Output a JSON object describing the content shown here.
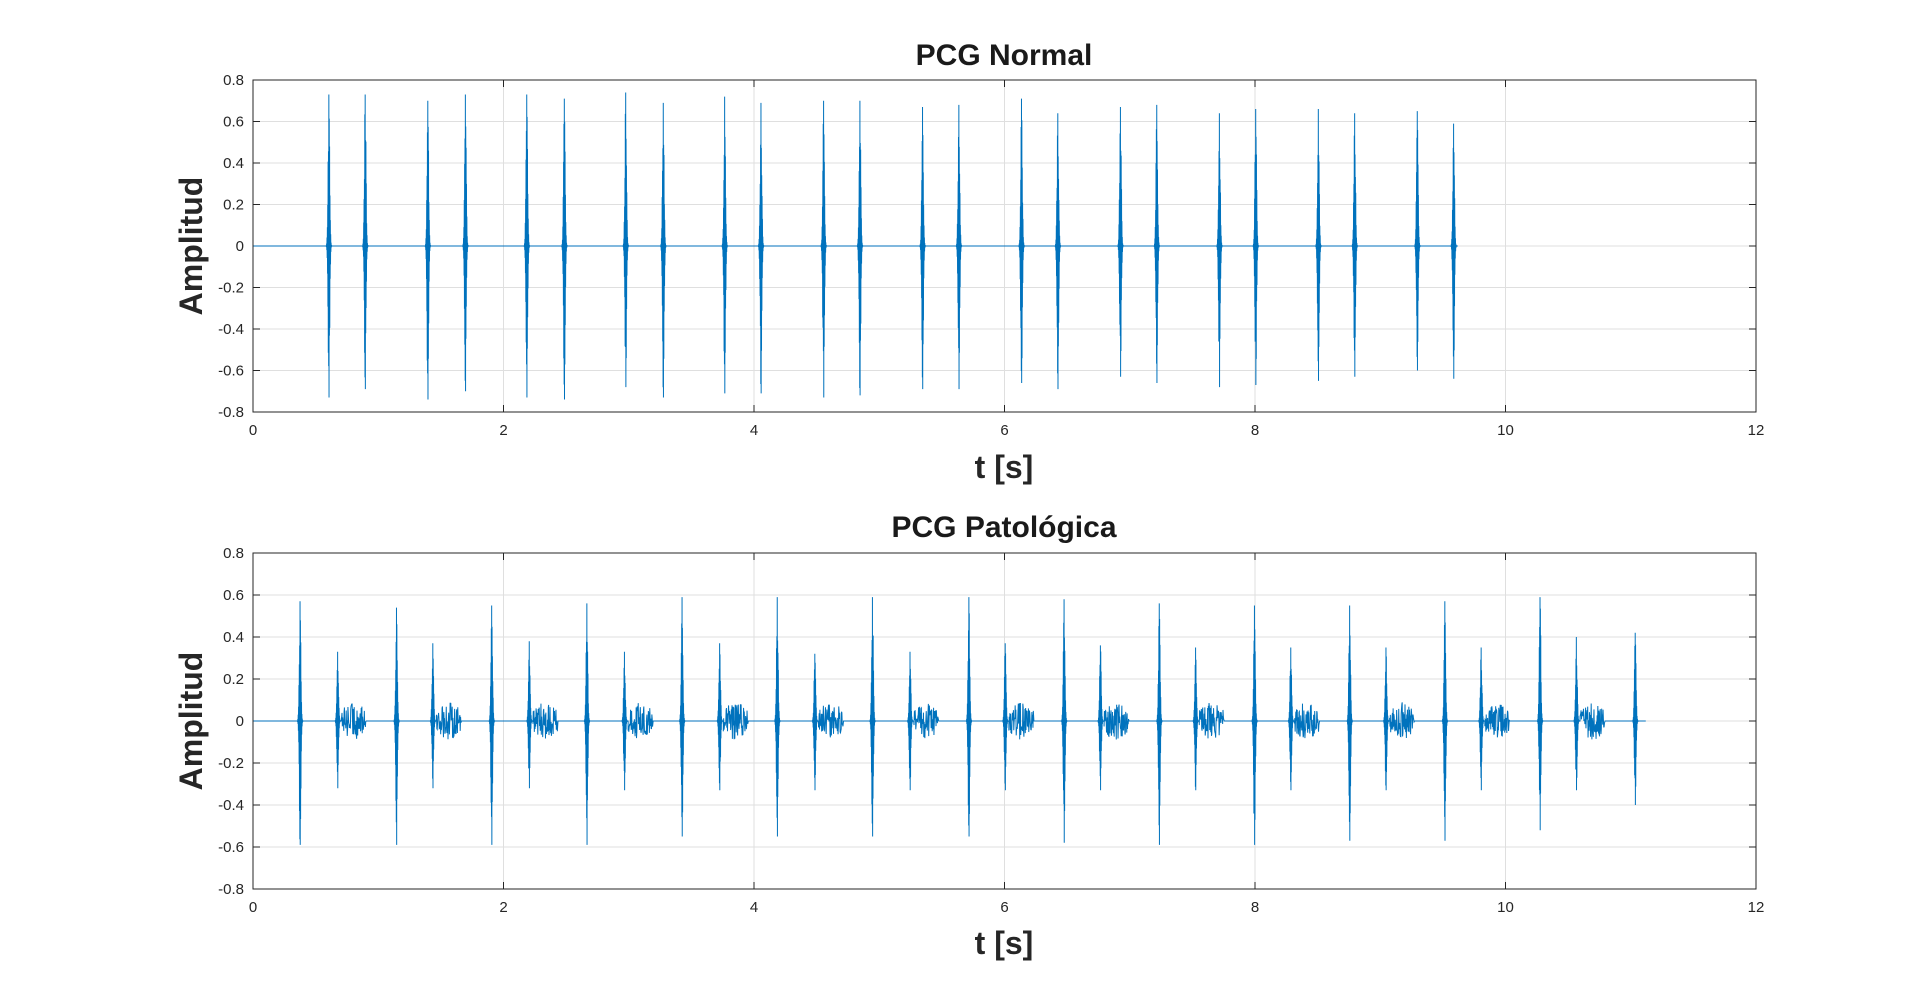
{
  "colors": {
    "signal": "#0072BD",
    "grid": "#dfdfdf",
    "axis": "#262626"
  },
  "chart_data": [
    {
      "type": "line",
      "title": "PCG Normal",
      "xlabel": "t [s]",
      "ylabel": "Amplitud",
      "xlim": [
        0,
        12
      ],
      "ylim": [
        -0.8,
        0.8
      ],
      "grid": true,
      "xticks": [
        "0",
        "2",
        "4",
        "6",
        "8",
        "10",
        "12"
      ],
      "yticks": [
        "0.8",
        "0.6",
        "0.4",
        "0.2",
        "0",
        "-0.2",
        "-0.4",
        "-0.6",
        "-0.8"
      ],
      "series": [
        {
          "signal_end": 9.62,
          "bursts": [
            {
              "t": 0.61,
              "pos": 0.73,
              "neg": -0.73,
              "dur": 0.05,
              "murmur": 0
            },
            {
              "t": 0.9,
              "pos": 0.73,
              "neg": -0.69,
              "dur": 0.05,
              "murmur": 0
            },
            {
              "t": 1.4,
              "pos": 0.7,
              "neg": -0.74,
              "dur": 0.05,
              "murmur": 0
            },
            {
              "t": 1.7,
              "pos": 0.73,
              "neg": -0.7,
              "dur": 0.05,
              "murmur": 0
            },
            {
              "t": 2.19,
              "pos": 0.73,
              "neg": -0.73,
              "dur": 0.05,
              "murmur": 0
            },
            {
              "t": 2.49,
              "pos": 0.71,
              "neg": -0.74,
              "dur": 0.05,
              "murmur": 0
            },
            {
              "t": 2.98,
              "pos": 0.74,
              "neg": -0.68,
              "dur": 0.05,
              "murmur": 0
            },
            {
              "t": 3.28,
              "pos": 0.69,
              "neg": -0.73,
              "dur": 0.05,
              "murmur": 0
            },
            {
              "t": 3.77,
              "pos": 0.72,
              "neg": -0.71,
              "dur": 0.05,
              "murmur": 0
            },
            {
              "t": 4.06,
              "pos": 0.69,
              "neg": -0.71,
              "dur": 0.05,
              "murmur": 0
            },
            {
              "t": 4.56,
              "pos": 0.7,
              "neg": -0.73,
              "dur": 0.05,
              "murmur": 0
            },
            {
              "t": 4.85,
              "pos": 0.7,
              "neg": -0.72,
              "dur": 0.05,
              "murmur": 0
            },
            {
              "t": 5.35,
              "pos": 0.67,
              "neg": -0.69,
              "dur": 0.05,
              "murmur": 0
            },
            {
              "t": 5.64,
              "pos": 0.68,
              "neg": -0.69,
              "dur": 0.05,
              "murmur": 0
            },
            {
              "t": 6.14,
              "pos": 0.71,
              "neg": -0.66,
              "dur": 0.05,
              "murmur": 0
            },
            {
              "t": 6.43,
              "pos": 0.64,
              "neg": -0.69,
              "dur": 0.05,
              "murmur": 0
            },
            {
              "t": 6.93,
              "pos": 0.67,
              "neg": -0.63,
              "dur": 0.05,
              "murmur": 0
            },
            {
              "t": 7.22,
              "pos": 0.68,
              "neg": -0.66,
              "dur": 0.05,
              "murmur": 0
            },
            {
              "t": 7.72,
              "pos": 0.64,
              "neg": -0.68,
              "dur": 0.05,
              "murmur": 0
            },
            {
              "t": 8.01,
              "pos": 0.66,
              "neg": -0.67,
              "dur": 0.05,
              "murmur": 0
            },
            {
              "t": 8.51,
              "pos": 0.66,
              "neg": -0.65,
              "dur": 0.05,
              "murmur": 0
            },
            {
              "t": 8.8,
              "pos": 0.64,
              "neg": -0.63,
              "dur": 0.05,
              "murmur": 0
            },
            {
              "t": 9.3,
              "pos": 0.65,
              "neg": -0.6,
              "dur": 0.05,
              "murmur": 0
            },
            {
              "t": 9.59,
              "pos": 0.59,
              "neg": -0.64,
              "dur": 0.05,
              "murmur": 0
            }
          ]
        }
      ]
    },
    {
      "type": "line",
      "title": "PCG Patológica",
      "xlabel": "t [s]",
      "ylabel": "Amplitud",
      "xlim": [
        0,
        12
      ],
      "ylim": [
        -0.8,
        0.8
      ],
      "grid": true,
      "xticks": [
        "0",
        "2",
        "4",
        "6",
        "8",
        "10",
        "12"
      ],
      "yticks": [
        "0.8",
        "0.6",
        "0.4",
        "0.2",
        "0",
        "-0.2",
        "-0.4",
        "-0.6",
        "-0.8"
      ],
      "series": [
        {
          "signal_end": 11.12,
          "bursts": [
            {
              "t": 0.38,
              "pos": 0.57,
              "neg": -0.59,
              "dur": 0.05,
              "murmur": 0
            },
            {
              "t": 0.68,
              "pos": 0.33,
              "neg": -0.32,
              "dur": 0.05,
              "murmur": 0.09
            },
            {
              "t": 1.15,
              "pos": 0.54,
              "neg": -0.59,
              "dur": 0.05,
              "murmur": 0
            },
            {
              "t": 1.44,
              "pos": 0.37,
              "neg": -0.32,
              "dur": 0.05,
              "murmur": 0.09
            },
            {
              "t": 1.91,
              "pos": 0.55,
              "neg": -0.59,
              "dur": 0.05,
              "murmur": 0
            },
            {
              "t": 2.21,
              "pos": 0.38,
              "neg": -0.32,
              "dur": 0.05,
              "murmur": 0.09
            },
            {
              "t": 2.67,
              "pos": 0.56,
              "neg": -0.59,
              "dur": 0.05,
              "murmur": 0
            },
            {
              "t": 2.97,
              "pos": 0.33,
              "neg": -0.33,
              "dur": 0.05,
              "murmur": 0.09
            },
            {
              "t": 3.43,
              "pos": 0.59,
              "neg": -0.55,
              "dur": 0.05,
              "murmur": 0
            },
            {
              "t": 3.73,
              "pos": 0.37,
              "neg": -0.33,
              "dur": 0.05,
              "murmur": 0.09
            },
            {
              "t": 4.19,
              "pos": 0.59,
              "neg": -0.55,
              "dur": 0.05,
              "murmur": 0
            },
            {
              "t": 4.49,
              "pos": 0.32,
              "neg": -0.33,
              "dur": 0.05,
              "murmur": 0.09
            },
            {
              "t": 4.95,
              "pos": 0.59,
              "neg": -0.55,
              "dur": 0.05,
              "murmur": 0
            },
            {
              "t": 5.25,
              "pos": 0.33,
              "neg": -0.33,
              "dur": 0.05,
              "murmur": 0.09
            },
            {
              "t": 5.72,
              "pos": 0.59,
              "neg": -0.55,
              "dur": 0.05,
              "murmur": 0
            },
            {
              "t": 6.01,
              "pos": 0.37,
              "neg": -0.33,
              "dur": 0.05,
              "murmur": 0.09
            },
            {
              "t": 6.48,
              "pos": 0.58,
              "neg": -0.58,
              "dur": 0.05,
              "murmur": 0
            },
            {
              "t": 6.77,
              "pos": 0.36,
              "neg": -0.33,
              "dur": 0.05,
              "murmur": 0.09
            },
            {
              "t": 7.24,
              "pos": 0.56,
              "neg": -0.59,
              "dur": 0.05,
              "murmur": 0
            },
            {
              "t": 7.53,
              "pos": 0.35,
              "neg": -0.33,
              "dur": 0.05,
              "murmur": 0.09
            },
            {
              "t": 8.0,
              "pos": 0.55,
              "neg": -0.59,
              "dur": 0.05,
              "murmur": 0
            },
            {
              "t": 8.29,
              "pos": 0.35,
              "neg": -0.33,
              "dur": 0.05,
              "murmur": 0.09
            },
            {
              "t": 8.76,
              "pos": 0.55,
              "neg": -0.57,
              "dur": 0.05,
              "murmur": 0
            },
            {
              "t": 9.05,
              "pos": 0.35,
              "neg": -0.33,
              "dur": 0.05,
              "murmur": 0.09
            },
            {
              "t": 9.52,
              "pos": 0.57,
              "neg": -0.57,
              "dur": 0.05,
              "murmur": 0
            },
            {
              "t": 9.81,
              "pos": 0.35,
              "neg": -0.33,
              "dur": 0.05,
              "murmur": 0.09
            },
            {
              "t": 10.28,
              "pos": 0.59,
              "neg": -0.52,
              "dur": 0.05,
              "murmur": 0
            },
            {
              "t": 10.57,
              "pos": 0.4,
              "neg": -0.33,
              "dur": 0.05,
              "murmur": 0.09
            },
            {
              "t": 11.04,
              "pos": 0.42,
              "neg": -0.4,
              "dur": 0.05,
              "murmur": 0
            }
          ]
        }
      ]
    }
  ]
}
